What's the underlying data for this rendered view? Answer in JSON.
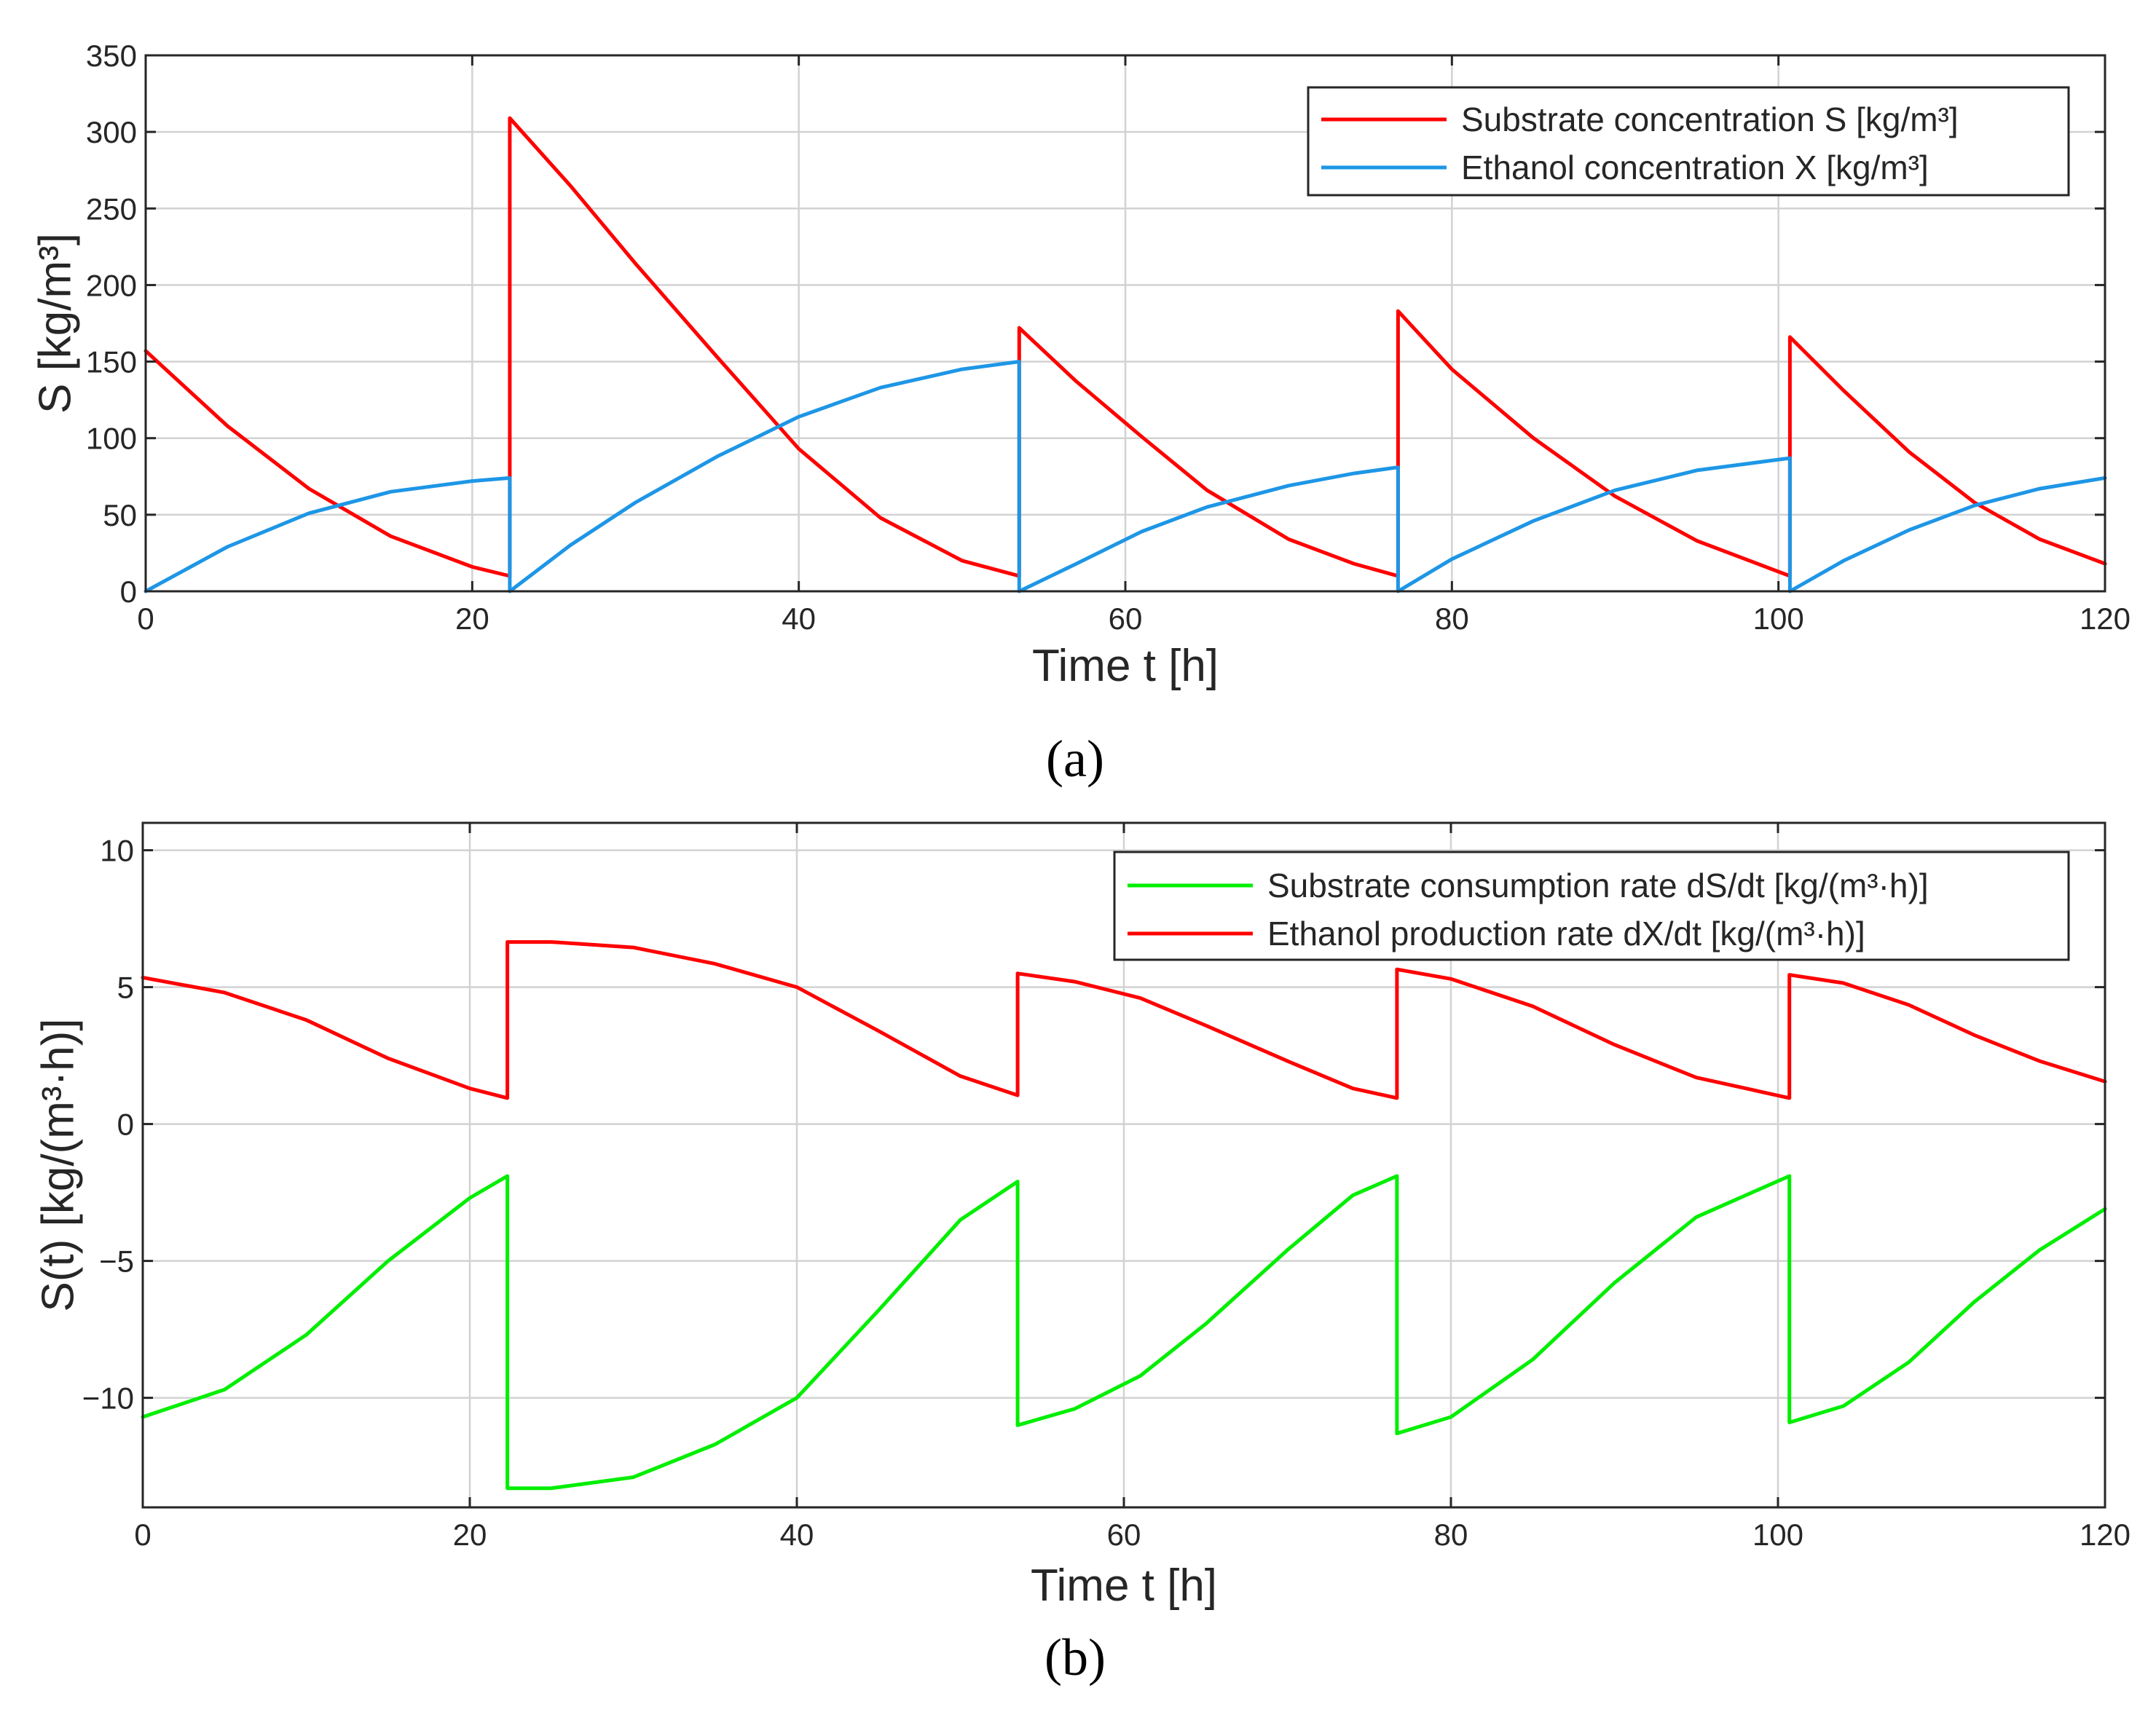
{
  "chart_data": [
    {
      "type": "line",
      "panel": "a",
      "caption": "(a)",
      "xlabel": "Time t [h]",
      "ylabel": "S [kg/m³]",
      "xlim": [
        0,
        120
      ],
      "ylim": [
        0,
        350
      ],
      "xticks": [
        0,
        20,
        40,
        60,
        80,
        100,
        120
      ],
      "yticks": [
        0,
        50,
        100,
        150,
        200,
        250,
        300,
        350
      ],
      "grid": true,
      "legend_position": "top-right",
      "series": [
        {
          "name": "Substrate concentration S [kg/m³]",
          "color": "#ff0000",
          "x": [
            0,
            5,
            10,
            15,
            20,
            22.3,
            22.3,
            26,
            30,
            35,
            40,
            45,
            50,
            53.5,
            53.5,
            57,
            61,
            65,
            70,
            74,
            76.7,
            76.7,
            80,
            85,
            90,
            95,
            100.7,
            100.7,
            104,
            108,
            112,
            116,
            120
          ],
          "values": [
            157,
            108,
            67,
            36,
            16,
            10,
            309,
            265,
            214,
            153,
            93,
            48,
            20,
            10,
            172,
            137,
            101,
            66,
            34,
            18,
            10,
            183,
            145,
            100,
            62,
            33,
            10,
            166,
            131,
            91,
            58,
            34,
            18
          ]
        },
        {
          "name": "Ethanol concentration X [kg/m³]",
          "color": "#1e96e6",
          "x": [
            0,
            5,
            10,
            15,
            20,
            22.3,
            22.3,
            26,
            30,
            35,
            40,
            45,
            50,
            53.5,
            53.5,
            57,
            61,
            65,
            70,
            74,
            76.7,
            76.7,
            80,
            85,
            90,
            95,
            100.7,
            100.7,
            104,
            108,
            112,
            116,
            120
          ],
          "values": [
            0,
            29,
            51,
            65,
            72,
            74,
            0,
            30,
            58,
            88,
            114,
            133,
            145,
            150,
            0,
            18,
            39,
            55,
            69,
            77,
            81,
            0,
            21,
            46,
            66,
            79,
            87,
            0,
            20,
            40,
            56,
            67,
            74
          ]
        }
      ]
    },
    {
      "type": "line",
      "panel": "b",
      "caption": "(b)",
      "xlabel": "Time t [h]",
      "ylabel": "S(t) [kg/(m³·h)]",
      "xlim": [
        0,
        120
      ],
      "ylim": [
        -14,
        11
      ],
      "xticks": [
        0,
        20,
        40,
        60,
        80,
        100,
        120
      ],
      "yticks": [
        -10,
        -5,
        0,
        5,
        10
      ],
      "ytick_labels": [
        "−10",
        "−5",
        "0",
        "5",
        "10"
      ],
      "grid": true,
      "legend_position": "top-right",
      "series": [
        {
          "name": "Substrate consumption rate dS/dt [kg/(m³·h)]",
          "color": "#00ee00",
          "x": [
            0,
            5,
            10,
            15,
            20,
            22.3,
            22.3,
            25,
            30,
            35,
            40,
            45,
            50,
            53.5,
            53.5,
            57,
            61,
            65,
            70,
            74,
            76.7,
            76.7,
            80,
            85,
            90,
            95,
            100.7,
            100.7,
            104,
            108,
            112,
            116,
            120
          ],
          "values": [
            -10.7,
            -9.7,
            -7.7,
            -5.0,
            -2.7,
            -1.9,
            -13.3,
            -13.3,
            -12.9,
            -11.7,
            -10.0,
            -6.8,
            -3.5,
            -2.1,
            -11.0,
            -10.4,
            -9.2,
            -7.3,
            -4.6,
            -2.6,
            -1.9,
            -11.3,
            -10.7,
            -8.6,
            -5.8,
            -3.4,
            -1.9,
            -10.9,
            -10.3,
            -8.7,
            -6.5,
            -4.6,
            -3.1
          ]
        },
        {
          "name": "Ethanol production rate dX/dt [kg/(m³·h)]",
          "color": "#ff0000",
          "x": [
            0,
            5,
            10,
            15,
            20,
            22.3,
            22.3,
            25,
            30,
            35,
            40,
            45,
            50,
            53.5,
            53.5,
            57,
            61,
            65,
            70,
            74,
            76.7,
            76.7,
            80,
            85,
            90,
            95,
            100.7,
            100.7,
            104,
            108,
            112,
            116,
            120
          ],
          "values": [
            5.35,
            4.8,
            3.8,
            2.4,
            1.3,
            0.95,
            6.65,
            6.65,
            6.45,
            5.85,
            5.0,
            3.4,
            1.75,
            1.05,
            5.5,
            5.2,
            4.6,
            3.6,
            2.3,
            1.3,
            0.95,
            5.65,
            5.3,
            4.3,
            2.9,
            1.7,
            0.95,
            5.45,
            5.15,
            4.35,
            3.25,
            2.3,
            1.55
          ]
        }
      ]
    }
  ]
}
